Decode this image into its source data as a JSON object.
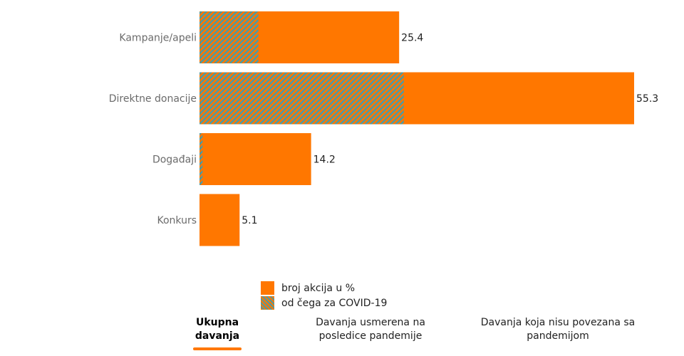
{
  "chart_data": {
    "type": "bar",
    "orientation": "horizontal",
    "categories": [
      "Kampanje/apeli",
      "Direktne donacije",
      "Događaji",
      "Konkurs"
    ],
    "series": [
      {
        "name": "broj akcija u %",
        "values": [
          25.4,
          55.3,
          14.2,
          5.1
        ]
      },
      {
        "name": "od čega za COVID-19",
        "values": [
          7.5,
          26.0,
          0.4,
          0.0
        ]
      }
    ],
    "xlim": [
      0,
      55.3
    ],
    "grid": false,
    "legend_position": "bottom-center",
    "colors": {
      "total": "#ff7700",
      "covid_a": "#ff7700",
      "covid_b": "#4f9aa0"
    }
  },
  "legend": {
    "items": [
      {
        "label": "broj akcija u %"
      },
      {
        "label": "od čega za COVID-19"
      }
    ]
  },
  "tabs": [
    {
      "label": "Ukupna davanja",
      "active": true
    },
    {
      "label": "Davanja usmerena na posledice pandemije",
      "active": false
    },
    {
      "label": "Davanja koja nisu povezana sa pandemijom",
      "active": false
    }
  ]
}
